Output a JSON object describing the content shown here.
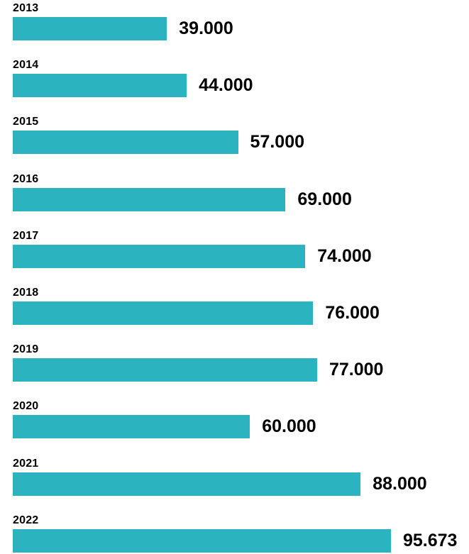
{
  "chart": {
    "bar_color": "#2BB3C0",
    "text_color": "#000000",
    "background_color": "#FFFFFF"
  },
  "chart_data": {
    "type": "bar",
    "orientation": "horizontal",
    "title": "",
    "xlabel": "",
    "ylabel": "",
    "legend": false,
    "gridlines": false,
    "xlim": [
      0,
      95673
    ],
    "categories": [
      "2013",
      "2014",
      "2015",
      "2016",
      "2017",
      "2018",
      "2019",
      "2020",
      "2021",
      "2022"
    ],
    "values": [
      39000,
      44000,
      57000,
      69000,
      74000,
      76000,
      77000,
      60000,
      88000,
      95673
    ],
    "value_labels": [
      "39.000",
      "44.000",
      "57.000",
      "69.000",
      "74.000",
      "76.000",
      "77.000",
      "60.000",
      "88.000",
      "95.673"
    ]
  }
}
